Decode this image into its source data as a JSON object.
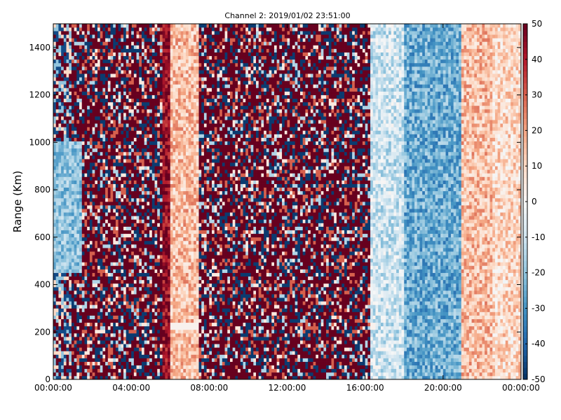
{
  "chart_data": {
    "type": "heatmap",
    "title": "Channel 2: 2019/01/02 23:51:00",
    "xlabel": "",
    "ylabel": "Range (Km)",
    "x_ticks": [
      "00:00:00",
      "04:00:00",
      "08:00:00",
      "12:00:00",
      "16:00:00",
      "20:00:00",
      "00:00:00"
    ],
    "x_range_hours": [
      0,
      24
    ],
    "y_ticks": [
      0,
      200,
      400,
      600,
      800,
      1000,
      1200,
      1400
    ],
    "ylim": [
      0,
      1500
    ],
    "colorbar": {
      "ticks": [
        -50,
        -40,
        -30,
        -20,
        -10,
        0,
        10,
        20,
        30,
        40,
        50
      ],
      "range": [
        -50,
        50
      ],
      "colormap": "RdBu_r",
      "color_min": "#053061",
      "color_mid": "#f7f7f7",
      "color_max": "#67001f"
    },
    "regions": [
      {
        "x_start_h": 0.0,
        "x_end_h": 1.0,
        "pattern": "noise",
        "description_level": "mixed"
      },
      {
        "x_start_h": 0.0,
        "x_end_h": 1.5,
        "y_start": 450,
        "y_end": 1000,
        "mean": -20
      },
      {
        "x_start_h": 1.0,
        "x_end_h": 5.6,
        "pattern": "noise",
        "mean": 30
      },
      {
        "x_start_h": 5.6,
        "x_end_h": 6.0,
        "mean": 45
      },
      {
        "x_start_h": 6.0,
        "x_end_h": 7.5,
        "mean": 15
      },
      {
        "x_start_h": 7.5,
        "x_end_h": 16.3,
        "pattern": "noise",
        "mean": 20
      },
      {
        "x_start_h": 16.3,
        "x_end_h": 18.0,
        "mean": -10
      },
      {
        "x_start_h": 18.0,
        "x_end_h": 21.0,
        "mean": -25
      },
      {
        "x_start_h": 21.0,
        "x_end_h": 22.5,
        "mean": 15
      },
      {
        "x_start_h": 22.5,
        "x_end_h": 24.0,
        "mean": 10
      }
    ]
  }
}
